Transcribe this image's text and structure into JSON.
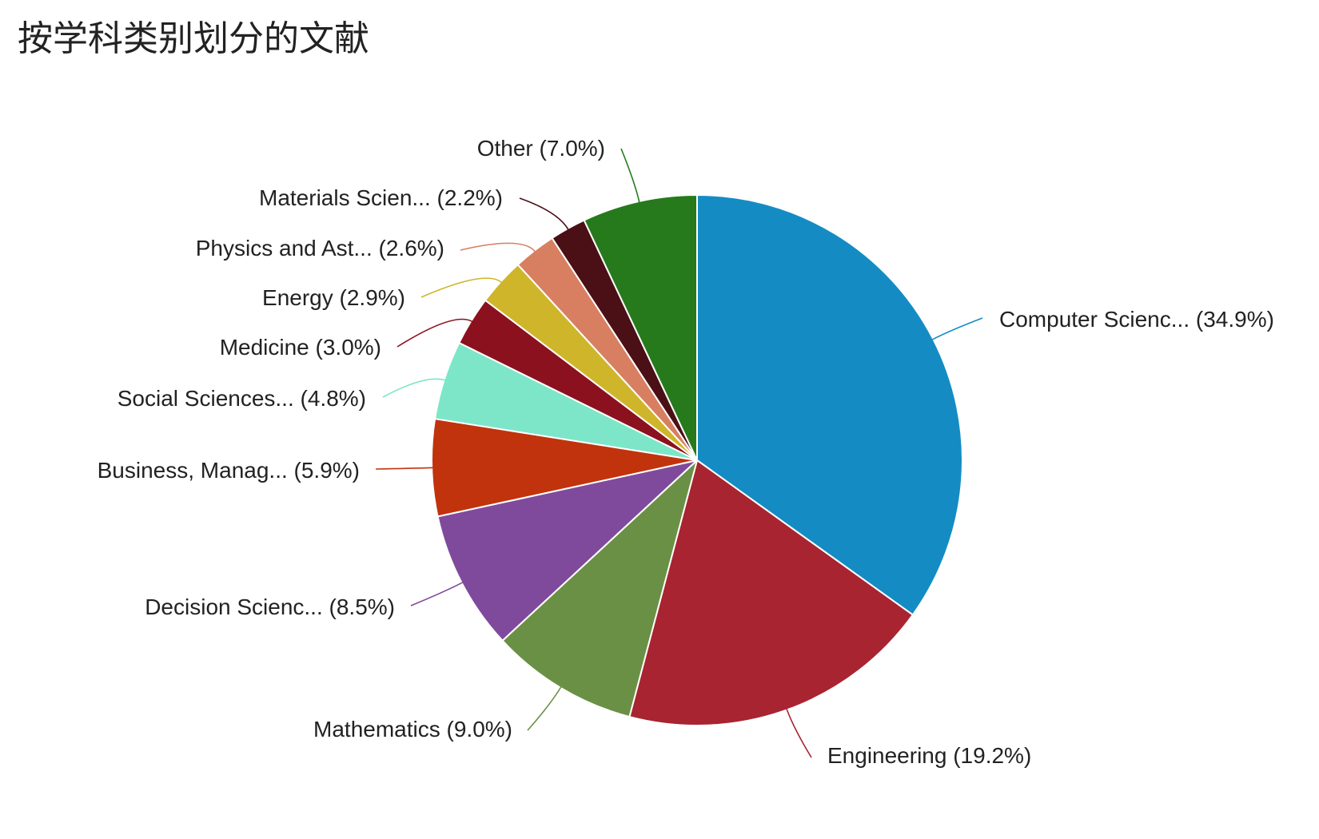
{
  "chart_data": {
    "type": "pie",
    "title": "按学科类别划分的文献",
    "start_angle_deg": 0,
    "direction": "clockwise",
    "slices": [
      {
        "label": "Computer Scienc...",
        "percent_label": "(34.9%)",
        "value": 34.9,
        "color": "#148cc3"
      },
      {
        "label": "Engineering",
        "percent_label": "(19.2%)",
        "value": 19.2,
        "color": "#a82430"
      },
      {
        "label": "Mathematics",
        "percent_label": "(9.0%)",
        "value": 9.0,
        "color": "#6a9045"
      },
      {
        "label": "Decision Scienc...",
        "percent_label": "(8.5%)",
        "value": 8.5,
        "color": "#804a9c"
      },
      {
        "label": "Business, Manag...",
        "percent_label": "(5.9%)",
        "value": 5.9,
        "color": "#c1330c"
      },
      {
        "label": "Social Sciences...",
        "percent_label": "(4.8%)",
        "value": 4.8,
        "color": "#7de6c8"
      },
      {
        "label": "Medicine",
        "percent_label": "(3.0%)",
        "value": 3.0,
        "color": "#8b111e"
      },
      {
        "label": "Energy",
        "percent_label": "(2.9%)",
        "value": 2.9,
        "color": "#cfb52a"
      },
      {
        "label": "Physics and Ast...",
        "percent_label": "(2.6%)",
        "value": 2.6,
        "color": "#d87f62"
      },
      {
        "label": "Materials Scien...",
        "percent_label": "(2.2%)",
        "value": 2.2,
        "color": "#4a1016"
      },
      {
        "label": "Other",
        "percent_label": "(7.0%)",
        "value": 7.0,
        "color": "#267a1c"
      }
    ]
  }
}
